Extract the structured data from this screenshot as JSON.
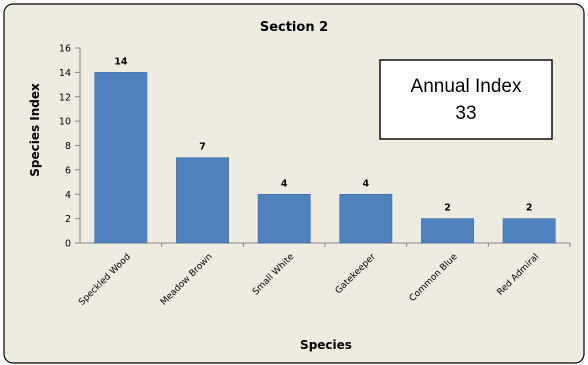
{
  "chart_data": {
    "type": "bar",
    "title": "Section 2",
    "xlabel": "Species",
    "ylabel": "Species Index",
    "categories": [
      "Speckled Wood",
      "Meadow Brown",
      "Small White",
      "Gatekeeper",
      "Common Blue",
      "Red Admiral"
    ],
    "values": [
      14,
      7,
      4,
      4,
      2,
      2
    ],
    "data_labels": [
      "14",
      "7",
      "4",
      "4",
      "2",
      "2"
    ],
    "ylim": [
      0,
      16
    ],
    "yticks": [
      0,
      2,
      4,
      6,
      8,
      10,
      12,
      14,
      16
    ],
    "grid": false,
    "legend": "none",
    "bar_color": "#4F81BD",
    "annotation": {
      "line1": "Annual Index",
      "line2": "33",
      "placement": "top-right"
    }
  },
  "colors": {
    "background": "#EEECE1",
    "bar": "#4F81BD",
    "bar_stroke": "#3A6CA8",
    "text": "#000000"
  }
}
